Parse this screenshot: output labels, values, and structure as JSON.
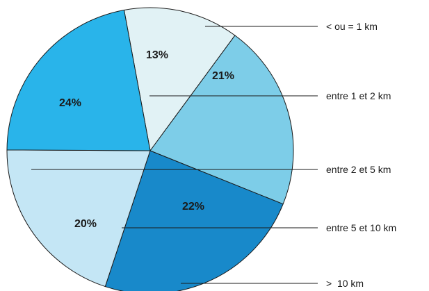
{
  "chart_data": {
    "type": "pie",
    "slices": [
      {
        "label": "< ou = 1 km",
        "value": 21,
        "value_label": "21%",
        "color": "#7dcde8"
      },
      {
        "label": "entre 1 et 2 km",
        "value": 13,
        "value_label": "13%",
        "color": "#e1f2f5"
      },
      {
        "label": "entre 2 et 5 km",
        "value": 24,
        "value_label": "24%",
        "color": "#1889ca"
      },
      {
        "label": "entre 5 et 10 km",
        "value": 20,
        "value_label": "20%",
        "color": "#c4e6f5"
      },
      {
        "label": ">  10 km",
        "value": 22,
        "value_label": "22%",
        "color": "#29b4ea"
      }
    ],
    "legend_position": "right"
  }
}
